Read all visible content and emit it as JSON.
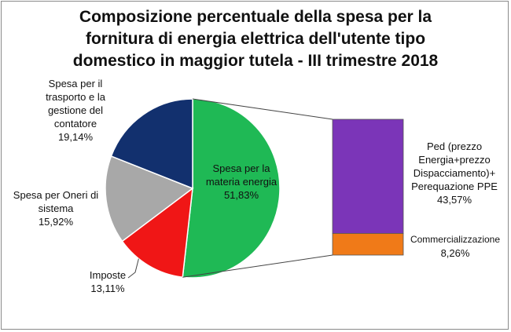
{
  "chart_data": {
    "type": "pie",
    "title": "Composizione percentuale della spesa per la\nfornitura di energia elettrica dell'utente tipo\ndomestico in maggior tutela - III trimestre 2018",
    "slices": [
      {
        "label": "Spesa per la\nmateria energia",
        "value": 51.83,
        "value_text": "51,83%",
        "color": "#1fb955"
      },
      {
        "label": "Imposte",
        "value": 13.11,
        "value_text": "13,11%",
        "color": "#f01616"
      },
      {
        "label": "Spesa per Oneri di\nsistema",
        "value": 15.92,
        "value_text": "15,92%",
        "color": "#a8a8a8"
      },
      {
        "label": "Spesa per il\ntrasporto e la\ngestione del\ncontatore",
        "value": 19.14,
        "value_text": "19,14%",
        "color": "#12306e"
      }
    ],
    "breakdown": {
      "of_slice": "Spesa per la\nmateria energia",
      "segments": [
        {
          "label": "Ped (prezzo\nEnergia+prezzo\nDispacciamento)+\nPerequazione PPE",
          "value": 43.57,
          "value_text": "43,57%",
          "color": "#7b35b8"
        },
        {
          "label": "Commercializzazione",
          "value": 8.26,
          "value_text": "8,26%",
          "color": "#f07a18"
        }
      ]
    }
  }
}
